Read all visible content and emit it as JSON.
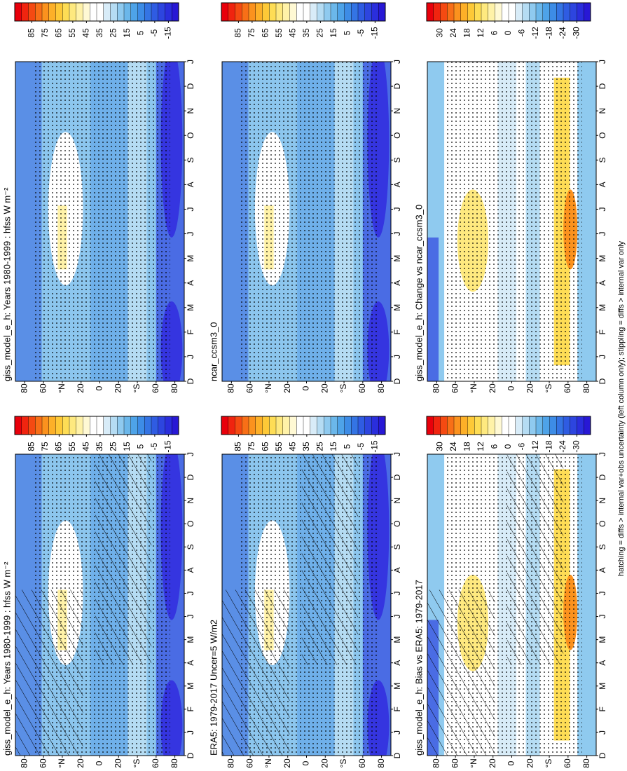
{
  "chart_data": [
    {
      "type": "contour",
      "title": "giss_model_e_h: Years 1980-1999 : hfss W m⁻²",
      "categories": [
        "D",
        "J",
        "F",
        "M",
        "A",
        "M",
        "J",
        "J",
        "A",
        "S",
        "O",
        "N",
        "D",
        "J"
      ],
      "ylim": [
        -90,
        90
      ],
      "yticks": [
        {
          "value": 80,
          "label": "80"
        },
        60,
        {
          "value": 40,
          "label": "°N"
        },
        20,
        0,
        {
          "value": -20,
          "label": "20"
        },
        {
          "value": -40,
          "label": "°S"
        },
        {
          "value": -60,
          "label": "60"
        },
        {
          "value": -80,
          "label": "80"
        }
      ],
      "colorbar": {
        "lim": [
          97.5,
          -22.5
        ],
        "ticks": [
          85,
          75,
          65,
          55,
          45,
          35,
          25,
          15,
          5,
          -5,
          -15
        ]
      }
    },
    {
      "type": "contour",
      "title": "giss_model_e_h: Years 1980-1999 : hfss W m⁻²",
      "categories": [
        "D",
        "J",
        "F",
        "M",
        "A",
        "M",
        "J",
        "J",
        "A",
        "S",
        "O",
        "N",
        "D",
        "J"
      ],
      "ylim": [
        -90,
        90
      ],
      "yticks": [
        {
          "value": 80,
          "label": "80"
        },
        60,
        {
          "value": 40,
          "label": "°N"
        },
        20,
        0,
        {
          "value": -20,
          "label": "20"
        },
        {
          "value": -40,
          "label": "°S"
        },
        {
          "value": -60,
          "label": "60"
        },
        {
          "value": -80,
          "label": "80"
        }
      ],
      "colorbar": {
        "lim": [
          97.5,
          -22.5
        ],
        "ticks": [
          85,
          75,
          65,
          55,
          45,
          35,
          25,
          15,
          5,
          -5,
          -15
        ]
      }
    },
    {
      "type": "contour",
      "title": "ERA5: 1979-2017 Uncer=5 W/m2",
      "categories": [
        "D",
        "J",
        "F",
        "M",
        "A",
        "M",
        "J",
        "J",
        "A",
        "S",
        "O",
        "N",
        "D",
        "J"
      ],
      "ylim": [
        -90,
        90
      ],
      "yticks": [
        {
          "value": 80,
          "label": "80"
        },
        60,
        {
          "value": 40,
          "label": "°N"
        },
        20,
        0,
        {
          "value": -20,
          "label": "20"
        },
        {
          "value": -40,
          "label": "°S"
        },
        {
          "value": -60,
          "label": "60"
        },
        {
          "value": -80,
          "label": "80"
        }
      ],
      "colorbar": {
        "lim": [
          97.5,
          -22.5
        ],
        "ticks": [
          85,
          75,
          65,
          55,
          45,
          35,
          25,
          15,
          5,
          -5,
          -15
        ]
      }
    },
    {
      "type": "contour",
      "title": "ncar_ccsm3_0",
      "categories": [
        "D",
        "J",
        "F",
        "M",
        "A",
        "M",
        "J",
        "J",
        "A",
        "S",
        "O",
        "N",
        "D",
        "J"
      ],
      "ylim": [
        -90,
        90
      ],
      "yticks": [
        {
          "value": 80,
          "label": "80"
        },
        60,
        {
          "value": 40,
          "label": "°N"
        },
        20,
        0,
        {
          "value": -20,
          "label": "20"
        },
        {
          "value": -40,
          "label": "°S"
        },
        {
          "value": -60,
          "label": "60"
        },
        {
          "value": -80,
          "label": "80"
        }
      ],
      "colorbar": {
        "lim": [
          97.5,
          -22.5
        ],
        "ticks": [
          85,
          75,
          65,
          55,
          45,
          35,
          25,
          15,
          5,
          -5,
          -15
        ]
      }
    },
    {
      "type": "contour",
      "title": "giss_model_e_h: Bias vs ERA5: 1979-2017",
      "categories": [
        "D",
        "J",
        "F",
        "M",
        "A",
        "M",
        "J",
        "J",
        "A",
        "S",
        "O",
        "N",
        "D",
        "J"
      ],
      "ylim": [
        -90,
        90
      ],
      "yticks": [
        {
          "value": 80,
          "label": "80"
        },
        60,
        {
          "value": 40,
          "label": "°N"
        },
        20,
        0,
        {
          "value": -20,
          "label": "20"
        },
        {
          "value": -40,
          "label": "°S"
        },
        {
          "value": -60,
          "label": "60"
        },
        {
          "value": -80,
          "label": "80"
        }
      ],
      "colorbar": {
        "lim": [
          36,
          -36
        ],
        "ticks": [
          30,
          24,
          18,
          12,
          6,
          0,
          -6,
          -12,
          -18,
          -24,
          -30
        ]
      }
    },
    {
      "type": "contour",
      "title": "giss_model_e_h: Change vs ncar_ccsm3_0",
      "categories": [
        "D",
        "J",
        "F",
        "M",
        "A",
        "M",
        "J",
        "J",
        "A",
        "S",
        "O",
        "N",
        "D",
        "J"
      ],
      "ylim": [
        -90,
        90
      ],
      "yticks": [
        {
          "value": 80,
          "label": "80"
        },
        60,
        {
          "value": 40,
          "label": "°N"
        },
        20,
        0,
        {
          "value": -20,
          "label": "20"
        },
        {
          "value": -40,
          "label": "°S"
        },
        {
          "value": -60,
          "label": "60"
        },
        {
          "value": -80,
          "label": "80"
        }
      ],
      "colorbar": {
        "lim": [
          36,
          -36
        ],
        "ticks": [
          30,
          24,
          18,
          12,
          6,
          0,
          -6,
          -12,
          -18,
          -24,
          -30
        ]
      }
    }
  ],
  "footnote": "hatching = diffs > internal var+obs uncertainty (left column only); stippling = diffs > internal var only",
  "colors": [
    "#e8000b",
    "#f0240f",
    "#f54a12",
    "#f86f17",
    "#fb921e",
    "#fdb028",
    "#fec937",
    "#fedd55",
    "#fee97f",
    "#fff2a8",
    "#fff9d4",
    "#ffffff",
    "#ffffff",
    "#d8ecf8",
    "#b5dcf3",
    "#8fcaef",
    "#6bb7ea",
    "#4ea3e8",
    "#3d8ce6",
    "#3474e4",
    "#2f5ce2",
    "#2d45df",
    "#2a2edc",
    "#2818d5"
  ]
}
